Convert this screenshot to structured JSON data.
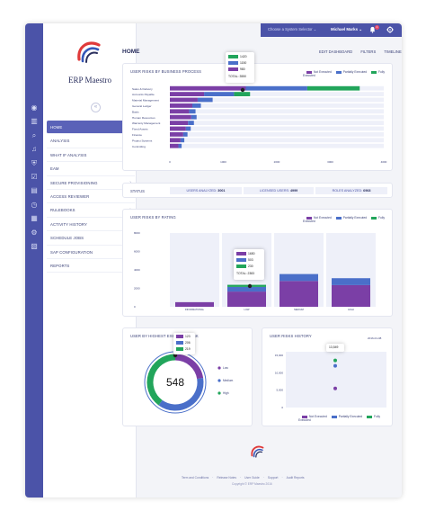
{
  "app": {
    "name": "ERP Maestro"
  },
  "topbar": {
    "system_selector": "Choose a System Selector",
    "user": "Michael Marks",
    "notifications": "1"
  },
  "page": {
    "title": "HOME",
    "links": [
      "EDIT DASHBOARD",
      "FILTERS",
      "TIMELINE"
    ]
  },
  "nav": {
    "items": [
      {
        "label": "HOME",
        "active": true,
        "icon": "dashboard-icon"
      },
      {
        "label": "ANALYSIS",
        "active": false,
        "icon": "bar-chart-icon"
      },
      {
        "label": "WHAT IF ANALYSIS",
        "active": false,
        "icon": "search-icon"
      },
      {
        "label": "EAM",
        "active": false,
        "icon": "bell-icon"
      },
      {
        "label": "SECURE PROVISIONING",
        "active": false,
        "icon": "shield-icon"
      },
      {
        "label": "ACCESS REVIEWER",
        "active": false,
        "icon": "user-check-icon"
      },
      {
        "label": "RULEBOOKS",
        "active": false,
        "icon": "book-icon"
      },
      {
        "label": "ACTIVITY HISTORY",
        "active": false,
        "icon": "clock-icon"
      },
      {
        "label": "SCHEDULE JOBS",
        "active": false,
        "icon": "calendar-icon"
      },
      {
        "label": "SAP CONFIGURATION",
        "active": false,
        "icon": "gear-icon"
      },
      {
        "label": "REPORTS",
        "active": false,
        "icon": "document-icon"
      }
    ]
  },
  "colors": {
    "not_executed": "#7b3fa6",
    "partially_executed": "#4a6fc9",
    "fully_executed": "#22a55b",
    "brand": "#4b53a8"
  },
  "legend": {
    "not_executed": "Not Executed",
    "partially_executed": "Partially Executed",
    "fully_executed": "Fully Executed"
  },
  "business_process": {
    "title": "USER RISKS BY BUSINESS PROCESS",
    "tooltip": {
      "values": [
        "1420",
        "1150",
        "980"
      ],
      "total_label": "TOTAL: 3550"
    },
    "chart_data": {
      "type": "bar",
      "orientation": "horizontal",
      "stacked": true,
      "categories": [
        "Sales & Delivery",
        "Accounts Payable",
        "Material Management",
        "General Ledger",
        "Basis",
        "Human Resources",
        "Warranty Management",
        "Fixed Assets",
        "Finance",
        "Project Systems",
        "Controlling"
      ],
      "series": [
        {
          "name": "Not Executed",
          "values": [
            1420,
            640,
            520,
            420,
            360,
            400,
            340,
            300,
            250,
            200,
            160
          ]
        },
        {
          "name": "Partially Executed",
          "values": [
            1150,
            560,
            280,
            160,
            120,
            100,
            110,
            90,
            80,
            70,
            60
          ]
        },
        {
          "name": "Fully Executed",
          "values": [
            980,
            300,
            0,
            0,
            0,
            0,
            0,
            0,
            0,
            0,
            0
          ]
        }
      ],
      "xlim": [
        0,
        4000
      ],
      "xticks": [
        "0",
        "1000",
        "2000",
        "3000",
        "4000"
      ]
    }
  },
  "status": {
    "label": "STATUS",
    "items": [
      {
        "label": "USERS ANALYZED:",
        "value": "3001"
      },
      {
        "label": "LICENSED USERS:",
        "value": "4999"
      },
      {
        "label": "ROLES ANALYZED:",
        "value": "6968"
      }
    ]
  },
  "rating": {
    "title": "USER RISKS BY RATING",
    "tooltip": {
      "values": [
        "1650",
        "503",
        "230"
      ],
      "total_label": "TOTAL: 2383"
    },
    "chart_data": {
      "type": "bar",
      "stacked": true,
      "categories": [
        "INFORMATIONAL",
        "LOW",
        "MEDIUM",
        "HIGH"
      ],
      "series": [
        {
          "name": "Not Executed",
          "values": [
            500,
            1650,
            2800,
            2350
          ]
        },
        {
          "name": "Partially Executed",
          "values": [
            0,
            503,
            750,
            750
          ]
        },
        {
          "name": "Fully Executed",
          "values": [
            0,
            230,
            0,
            0
          ]
        }
      ],
      "ylim": [
        0,
        8000
      ],
      "yticks": [
        "8000",
        "6000",
        "4000",
        "2000",
        "0"
      ]
    }
  },
  "donut": {
    "title": "USER BY HIGHEST EXECUTED RISK",
    "center": "548",
    "tooltip": {
      "values": [
        "123",
        "206",
        "219"
      ]
    },
    "chart_data": {
      "type": "pie",
      "categories": [
        "Low",
        "Medium",
        "High"
      ],
      "values": [
        123,
        206,
        219
      ]
    }
  },
  "history": {
    "title": "USER RISKS HISTORY",
    "date": "2016-01-08",
    "tooltip": "13,549",
    "chart_data": {
      "type": "scatter",
      "x": [
        "2016-01-08",
        "2016-01-08",
        "2016-01-08"
      ],
      "series": [
        {
          "name": "Fully Executed",
          "values": [
            13549
          ]
        },
        {
          "name": "Partially Executed",
          "values": [
            12000
          ]
        },
        {
          "name": "Not Executed",
          "values": [
            5500
          ]
        }
      ],
      "ylim": [
        0,
        15000
      ],
      "yticks": [
        "15,000",
        "10,000",
        "5,000",
        "0"
      ]
    }
  },
  "footer": {
    "links": [
      "Term and Conditions",
      "Release Notes",
      "User Guide",
      "Support",
      "Audit Reports"
    ],
    "copyright": "Copyright © ERP Maestro 2016"
  }
}
